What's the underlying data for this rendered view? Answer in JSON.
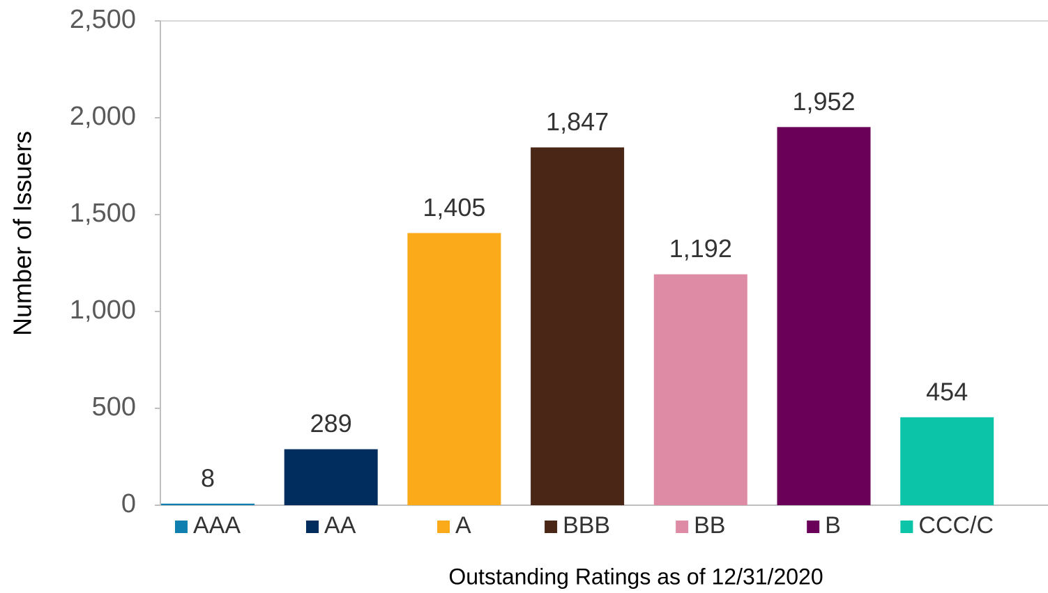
{
  "chart_data": {
    "type": "bar",
    "xlabel": "Outstanding Ratings as of 12/31/2020",
    "ylabel": "Number of Issuers",
    "categories": [
      "AAA",
      "AA",
      "A",
      "BBB",
      "BB",
      "B",
      "CCC/C"
    ],
    "values": [
      8,
      289,
      1405,
      1847,
      1192,
      1952,
      454
    ],
    "value_labels": [
      "8",
      "289",
      "1,405",
      "1,847",
      "1,192",
      "1,952",
      "454"
    ],
    "colors": [
      "#0f7fb0",
      "#002d5e",
      "#fbaa19",
      "#4a2616",
      "#de8ca5",
      "#6a0058",
      "#0cc5a8"
    ],
    "ylim": [
      0,
      2500
    ],
    "yticks": [
      0,
      500,
      {
        "value": 1000,
        "label": "1,000"
      },
      {
        "value": 1500,
        "label": "1,500"
      },
      {
        "value": 2000,
        "label": "2,000"
      },
      {
        "value": 2500,
        "label": "2,500"
      }
    ],
    "grid": false,
    "legend": "bottom"
  }
}
